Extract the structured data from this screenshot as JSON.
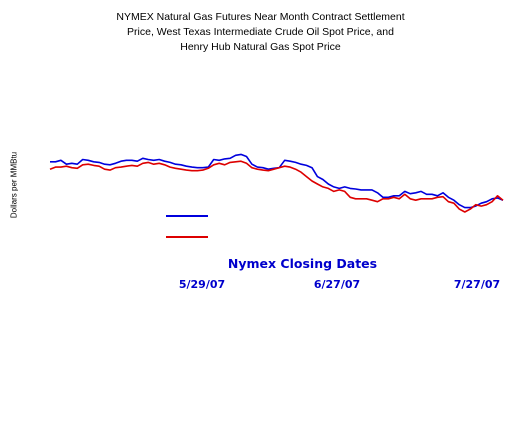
{
  "chart_data": {
    "type": "line",
    "title": "NYMEX Natural Gas Futures Near Month Contract Settlement Price, West Texas Intermediate Crude Oil Spot Price, and Henry Hub Natural Gas Spot Price",
    "title_lines": [
      "NYMEX Natural Gas Futures Near Month Contract Settlement",
      "Price, West Texas Intermediate Crude Oil Spot Price, and",
      "Henry Hub Natural Gas Spot Price"
    ],
    "xlabel": "Nymex Closing Dates",
    "ylabel": "Dollars per MMBtu",
    "x_tick_labels": [
      "5/29/07",
      "6/27/07",
      "7/27/07"
    ],
    "grid": false,
    "legend_position": "lower-center",
    "series": [
      {
        "color": "#0000dd",
        "values": [
          7.8,
          7.8,
          7.85,
          7.72,
          7.75,
          7.72,
          7.88,
          7.85,
          7.8,
          7.78,
          7.72,
          7.7,
          7.75,
          7.82,
          7.85,
          7.85,
          7.82,
          7.92,
          7.88,
          7.85,
          7.88,
          7.82,
          7.78,
          7.72,
          7.7,
          7.65,
          7.62,
          7.6,
          7.6,
          7.62,
          7.88,
          7.85,
          7.9,
          7.92,
          8.02,
          8.05,
          7.98,
          7.72,
          7.62,
          7.6,
          7.55,
          7.58,
          7.6,
          7.85,
          7.82,
          7.78,
          7.72,
          7.68,
          7.6,
          7.3,
          7.2,
          7.05,
          6.95,
          6.9,
          6.95,
          6.9,
          6.88,
          6.85,
          6.85,
          6.85,
          6.75,
          6.6,
          6.6,
          6.65,
          6.65,
          6.8,
          6.72,
          6.75,
          6.8,
          6.7,
          6.7,
          6.65,
          6.75,
          6.6,
          6.5,
          6.35,
          6.25,
          6.25,
          6.3,
          6.4,
          6.45,
          6.55,
          6.58,
          6.5
        ]
      },
      {
        "color": "#dd0000",
        "values": [
          7.55,
          7.62,
          7.62,
          7.65,
          7.6,
          7.58,
          7.7,
          7.72,
          7.68,
          7.65,
          7.55,
          7.52,
          7.6,
          7.62,
          7.65,
          7.68,
          7.65,
          7.75,
          7.78,
          7.72,
          7.75,
          7.7,
          7.62,
          7.58,
          7.55,
          7.52,
          7.5,
          7.5,
          7.52,
          7.58,
          7.7,
          7.75,
          7.7,
          7.78,
          7.8,
          7.82,
          7.75,
          7.6,
          7.55,
          7.52,
          7.5,
          7.55,
          7.6,
          7.65,
          7.62,
          7.55,
          7.45,
          7.3,
          7.15,
          7.05,
          6.95,
          6.9,
          6.8,
          6.85,
          6.8,
          6.6,
          6.55,
          6.55,
          6.55,
          6.5,
          6.45,
          6.55,
          6.55,
          6.6,
          6.55,
          6.7,
          6.55,
          6.5,
          6.55,
          6.55,
          6.55,
          6.6,
          6.62,
          6.45,
          6.4,
          6.2,
          6.1,
          6.2,
          6.35,
          6.3,
          6.35,
          6.45,
          6.65,
          6.5
        ]
      }
    ]
  }
}
